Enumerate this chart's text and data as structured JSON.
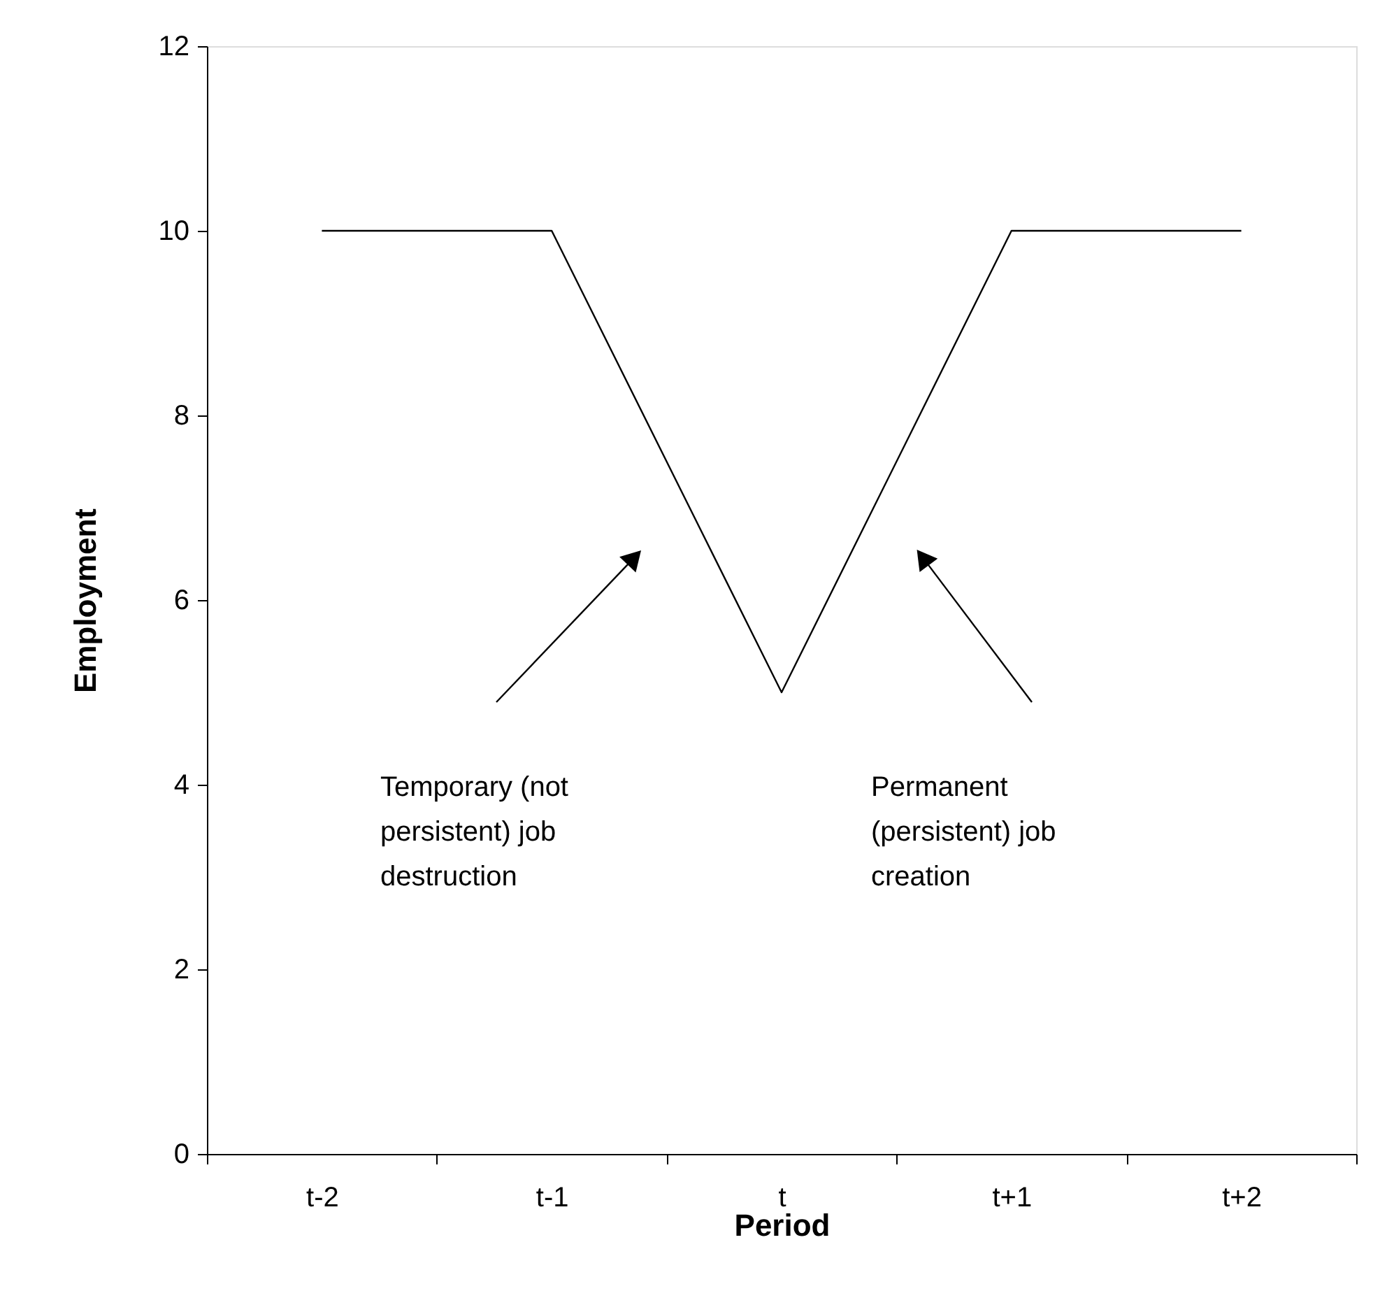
{
  "chart_data": {
    "type": "line",
    "xlabel": "Period",
    "ylabel": "Employment",
    "categories": [
      "t-2",
      "t-1",
      "t",
      "t+1",
      "t+2"
    ],
    "series": [
      {
        "color": "#000000",
        "values": [
          10,
          10,
          5,
          10,
          10
        ]
      }
    ],
    "ylim": [
      0,
      12
    ],
    "yticks": [
      0,
      2,
      4,
      6,
      8,
      10,
      12
    ],
    "grid": false,
    "marker": "none",
    "line_style": "solid",
    "annotations": [
      "Temporary (not persistent) job destruction",
      "Permanent (persistent) job creation"
    ]
  }
}
